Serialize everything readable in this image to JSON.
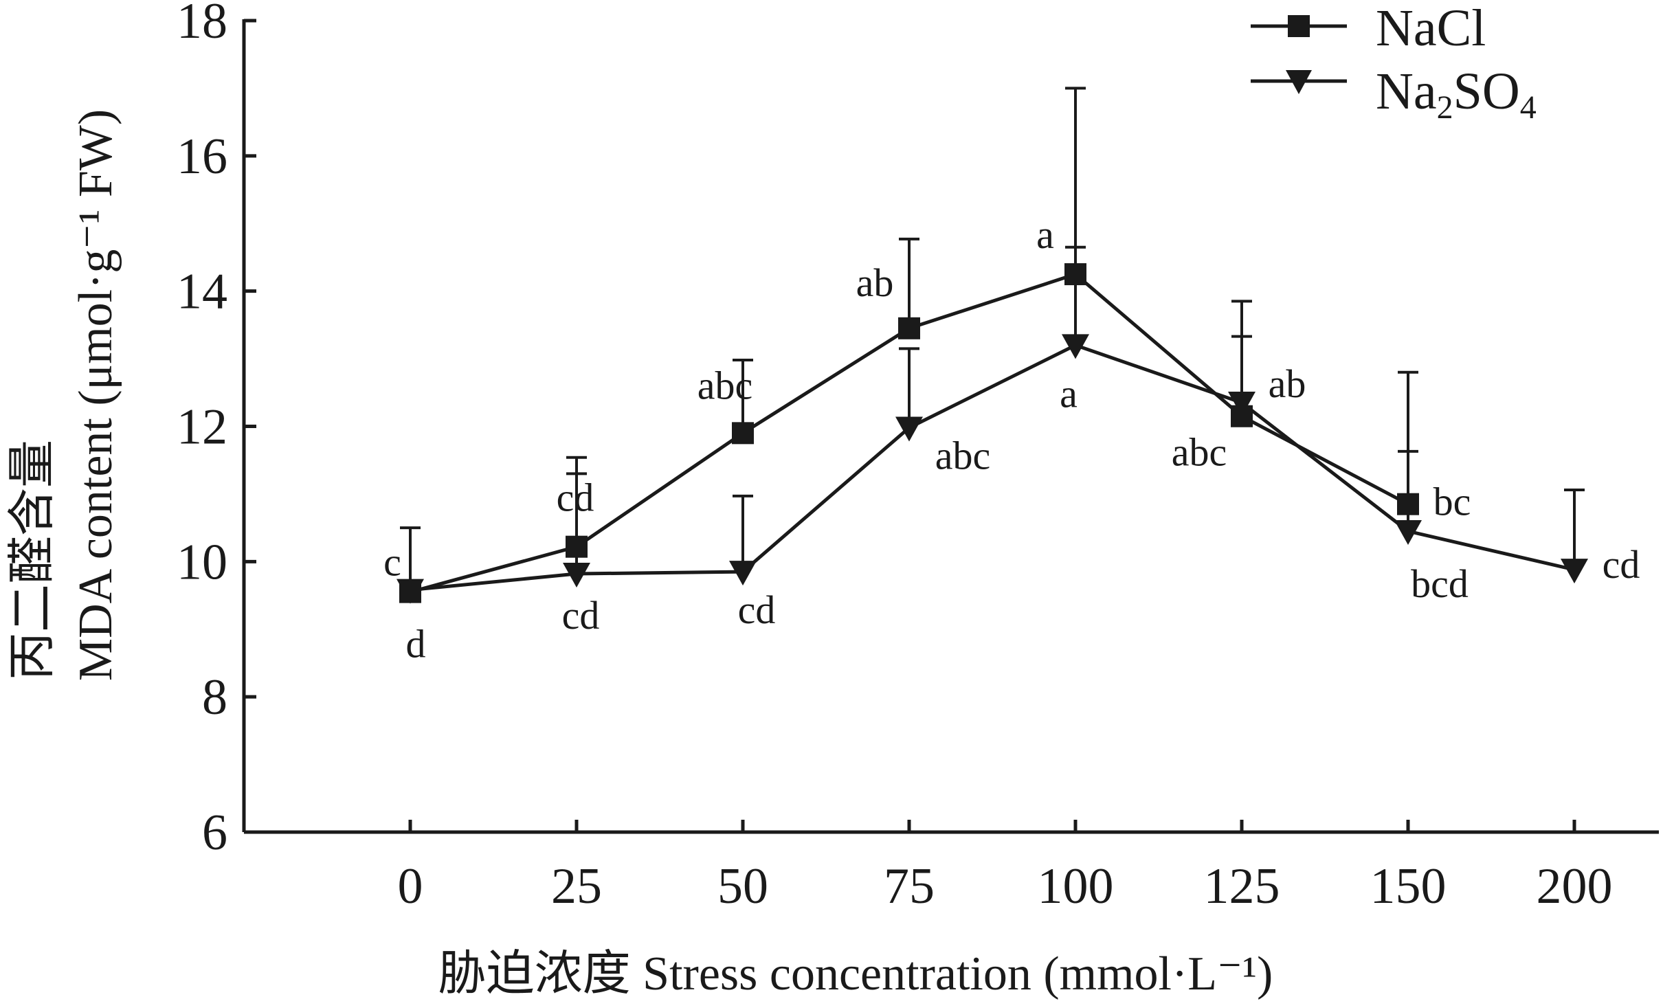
{
  "chart_data": {
    "type": "line",
    "categories": [
      "0",
      "25",
      "50",
      "75",
      "100",
      "125",
      "150",
      "200"
    ],
    "xlabel": "胁迫浓度 Stress concentration (mmol·L⁻¹)",
    "ylabel_cn": "丙二醛含量",
    "ylabel": "MDA content (μmol·g⁻¹ FW)",
    "ylim": [
      6,
      18
    ],
    "yticks": [
      "6",
      "8",
      "10",
      "12",
      "14",
      "16",
      "18"
    ],
    "grid": false,
    "legend_position": "top-right",
    "series": [
      {
        "name": "NaCl",
        "marker": "square",
        "values": [
          9.55,
          10.22,
          11.9,
          13.45,
          14.25,
          12.15,
          10.85,
          null
        ],
        "errors": [
          0.95,
          1.32,
          1.08,
          1.32,
          2.75,
          1.7,
          1.95,
          null
        ],
        "letters": [
          "c",
          "cd",
          "abc",
          "ab",
          "a",
          "abc",
          "bc",
          null
        ]
      },
      {
        "name": "Na₂SO₄",
        "marker": "triangle-down",
        "values": [
          9.58,
          9.82,
          9.85,
          11.98,
          13.2,
          12.35,
          10.45,
          9.88
        ],
        "errors": [
          0,
          1.48,
          1.12,
          1.17,
          1.45,
          0.98,
          1.18,
          1.18
        ],
        "letters": [
          "d",
          "cd",
          "cd",
          "abc",
          "a",
          "ab",
          "bcd",
          "cd"
        ]
      }
    ],
    "legend": {
      "nacl": "NaCl",
      "na2so4": {
        "base": "Na",
        "sub1": "2",
        "mid": "SO",
        "sub2": "4"
      }
    }
  }
}
